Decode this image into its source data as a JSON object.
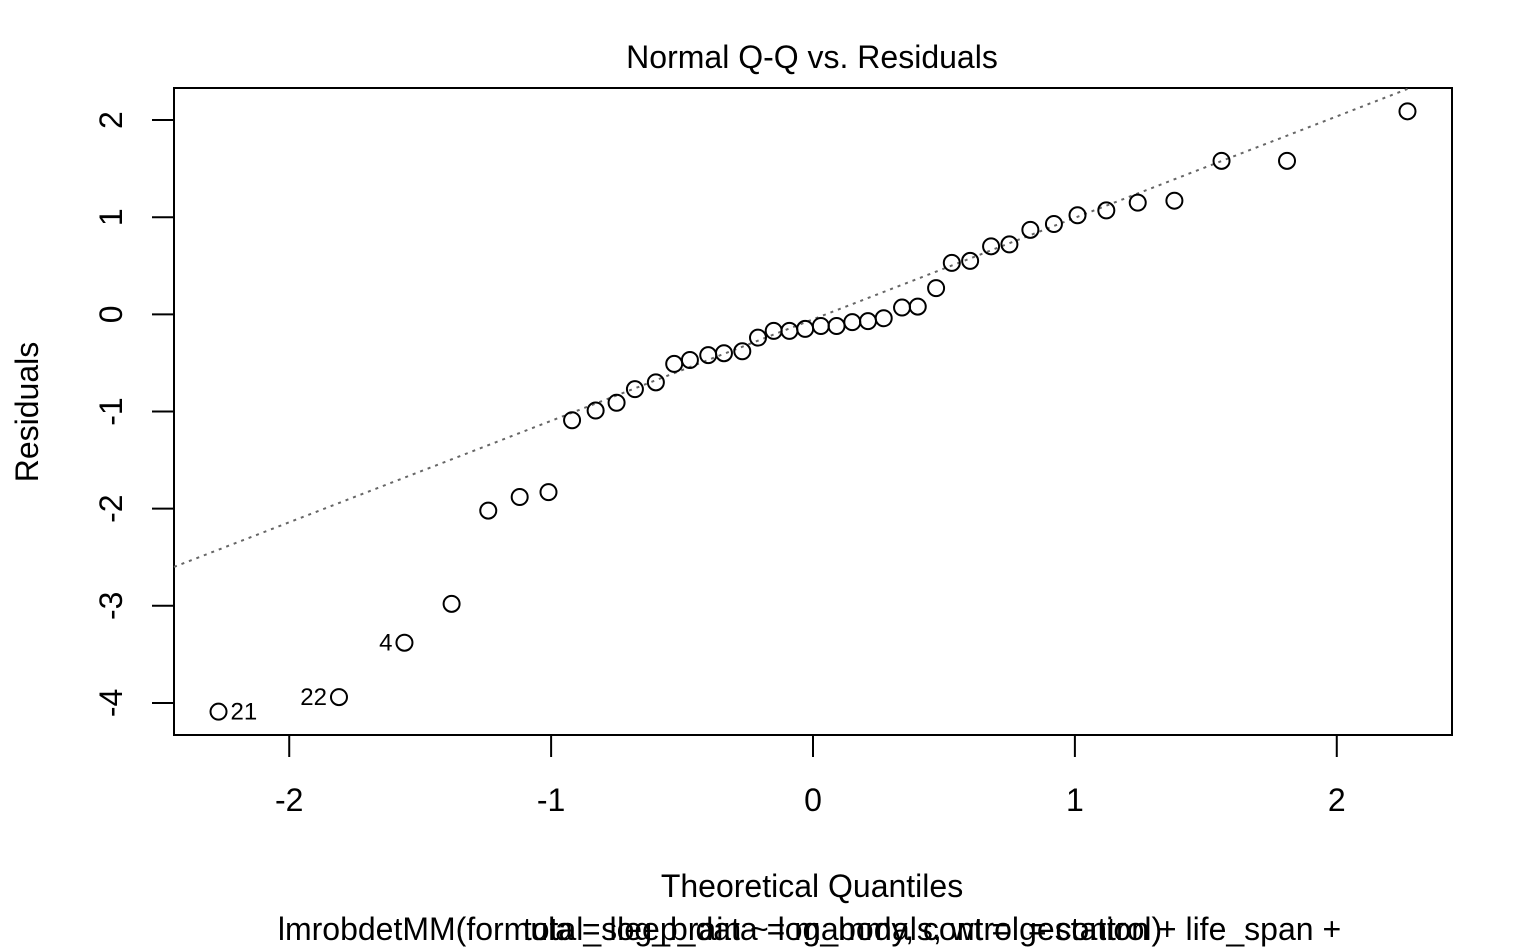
{
  "chart_data": {
    "type": "scatter",
    "title": "Normal Q-Q vs. Residuals",
    "xlabel": "Theoretical Quantiles",
    "ylabel": "Residuals",
    "subtitle_lines": [
      "lmrobdetMM(formula = log_brain ~ log_body, control = control)",
      "total_sleep_data = mammals, wt = gestation + life_span +"
    ],
    "xlim": [
      -2.44,
      2.44
    ],
    "ylim": [
      -4.33,
      2.33
    ],
    "x_ticks": [
      -2,
      -1,
      0,
      1,
      2
    ],
    "x_tick_labels": [
      "-2",
      "-1",
      "0",
      "1",
      "2"
    ],
    "y_ticks": [
      -4,
      -3,
      -2,
      -1,
      0,
      1,
      2
    ],
    "y_tick_labels": [
      "-4",
      "-3",
      "-2",
      "-1",
      "0",
      "1",
      "2"
    ],
    "grid": false,
    "reference_line": {
      "style": "dotted",
      "color": "#666666",
      "points": [
        [
          -2.44,
          -2.6
        ],
        [
          2.27,
          2.32
        ]
      ]
    },
    "point_labels": [
      {
        "index": 0,
        "text": "21",
        "side": "right"
      },
      {
        "index": 1,
        "text": "22",
        "side": "left"
      },
      {
        "index": 2,
        "text": "4",
        "side": "left"
      }
    ],
    "points": [
      {
        "x": -2.27,
        "y": -4.09
      },
      {
        "x": -1.81,
        "y": -3.94
      },
      {
        "x": -1.56,
        "y": -3.38
      },
      {
        "x": -1.38,
        "y": -2.98
      },
      {
        "x": -1.24,
        "y": -2.02
      },
      {
        "x": -1.12,
        "y": -1.88
      },
      {
        "x": -1.01,
        "y": -1.83
      },
      {
        "x": -0.92,
        "y": -1.09
      },
      {
        "x": -0.83,
        "y": -0.99
      },
      {
        "x": -0.75,
        "y": -0.91
      },
      {
        "x": -0.68,
        "y": -0.77
      },
      {
        "x": -0.6,
        "y": -0.7
      },
      {
        "x": -0.53,
        "y": -0.51
      },
      {
        "x": -0.47,
        "y": -0.47
      },
      {
        "x": -0.4,
        "y": -0.42
      },
      {
        "x": -0.34,
        "y": -0.4
      },
      {
        "x": -0.27,
        "y": -0.38
      },
      {
        "x": -0.21,
        "y": -0.24
      },
      {
        "x": -0.15,
        "y": -0.17
      },
      {
        "x": -0.09,
        "y": -0.17
      },
      {
        "x": -0.03,
        "y": -0.15
      },
      {
        "x": 0.03,
        "y": -0.12
      },
      {
        "x": 0.09,
        "y": -0.12
      },
      {
        "x": 0.15,
        "y": -0.08
      },
      {
        "x": 0.21,
        "y": -0.07
      },
      {
        "x": 0.27,
        "y": -0.04
      },
      {
        "x": 0.34,
        "y": 0.07
      },
      {
        "x": 0.4,
        "y": 0.08
      },
      {
        "x": 0.47,
        "y": 0.27
      },
      {
        "x": 0.53,
        "y": 0.53
      },
      {
        "x": 0.6,
        "y": 0.55
      },
      {
        "x": 0.68,
        "y": 0.7
      },
      {
        "x": 0.75,
        "y": 0.72
      },
      {
        "x": 0.83,
        "y": 0.87
      },
      {
        "x": 0.92,
        "y": 0.93
      },
      {
        "x": 1.01,
        "y": 1.02
      },
      {
        "x": 1.12,
        "y": 1.07
      },
      {
        "x": 1.24,
        "y": 1.15
      },
      {
        "x": 1.38,
        "y": 1.17
      },
      {
        "x": 1.56,
        "y": 1.58
      },
      {
        "x": 1.81,
        "y": 1.58
      },
      {
        "x": 2.27,
        "y": 2.09
      }
    ]
  }
}
